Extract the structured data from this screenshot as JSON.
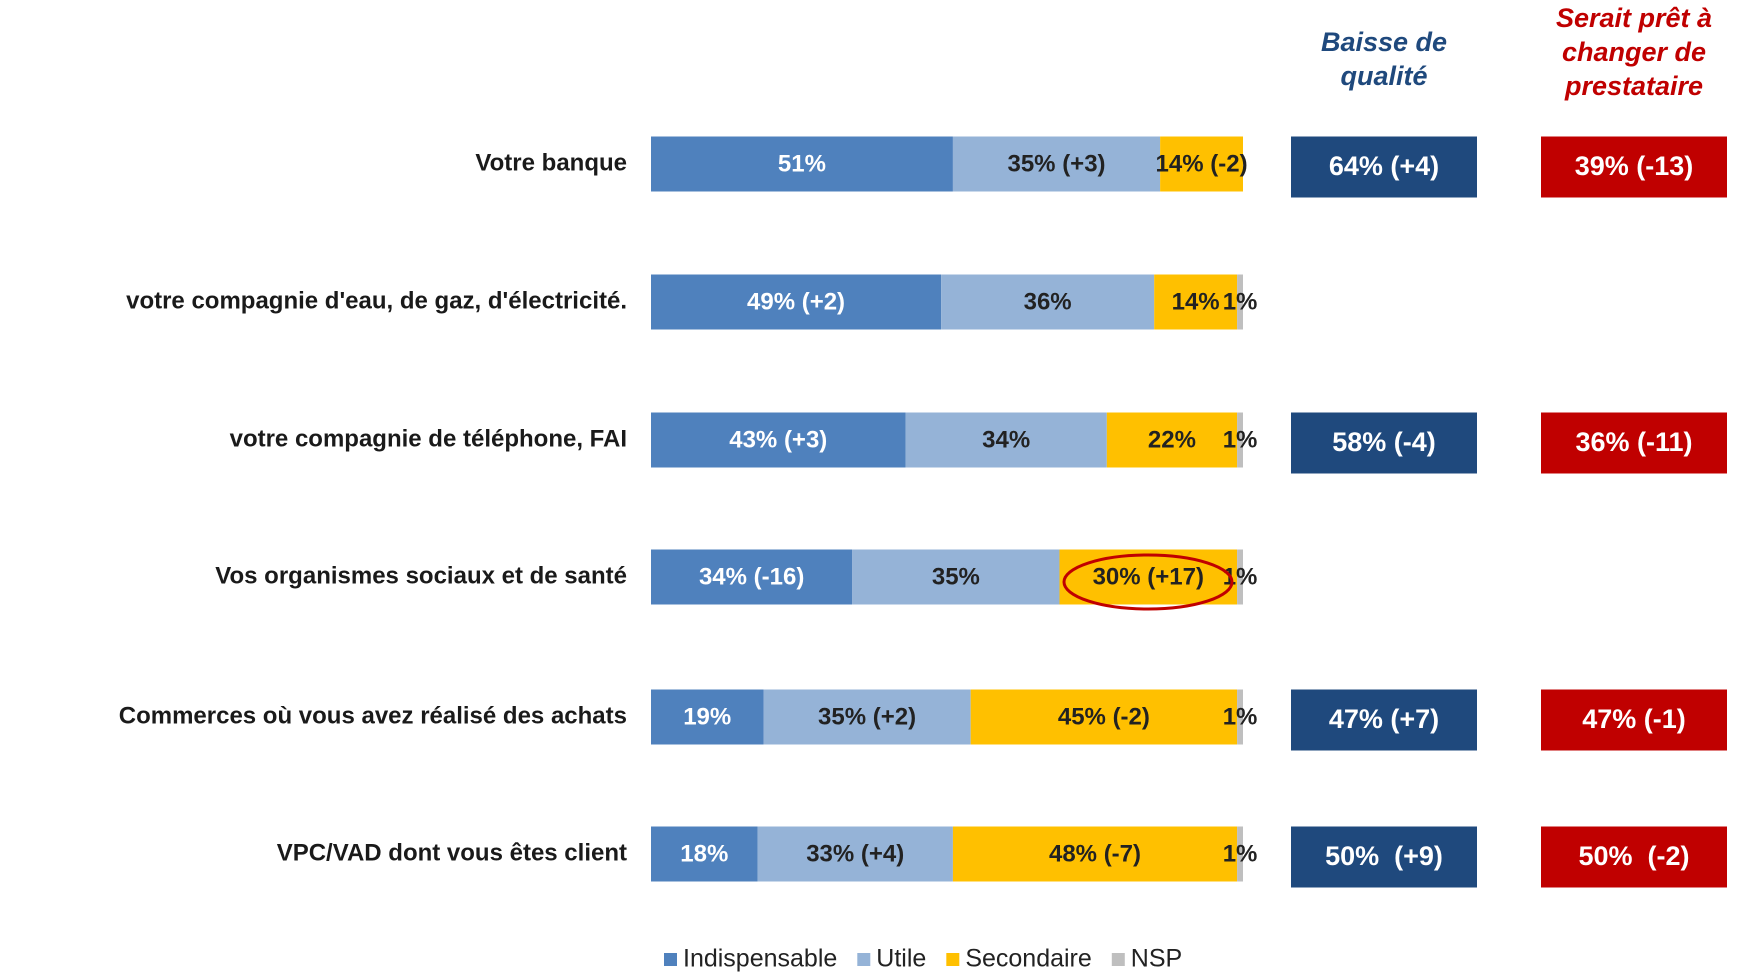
{
  "chart_data": {
    "type": "stacked_bar_horizontal",
    "categories": [
      "Votre banque",
      "votre compagnie d'eau, de gaz, d'électricité.",
      "votre compagnie de téléphone, FAI",
      "Vos organismes sociaux et de santé",
      "Commerces où vous avez réalisé des achats",
      "VPC/VAD dont vous êtes client"
    ],
    "xlim": [
      0,
      100
    ],
    "legend": "bottom",
    "series": [
      {
        "name": "Indispensable",
        "color": "#4f81bd",
        "values": [
          51,
          49,
          43,
          34,
          19,
          18
        ],
        "value_labels": [
          "51%",
          "49% (+2)",
          "43% (+3)",
          "34% (-16)",
          "19%",
          "18%"
        ]
      },
      {
        "name": "Utile",
        "color": "#95b3d7",
        "values": [
          35,
          36,
          34,
          35,
          35,
          33
        ],
        "value_labels": [
          "35% (+3)",
          "36%",
          "34%",
          "35%",
          "35% (+2)",
          "33% (+4)"
        ]
      },
      {
        "name": "Secondaire",
        "color": "#ffc000",
        "values": [
          14,
          14,
          22,
          30,
          45,
          48
        ],
        "value_labels": [
          "14% (-2)",
          "14%",
          "22%",
          "30% (+17)",
          "45% (-2)",
          "48% (-7)"
        ]
      },
      {
        "name": "NSP",
        "color": "#bfbfbf",
        "values": [
          null,
          1,
          1,
          1,
          1,
          1
        ],
        "value_labels": [
          null,
          "1%",
          "1%",
          "1%",
          "1%",
          "1%"
        ]
      }
    ],
    "side_columns": [
      {
        "title_lines": [
          "Baisse de",
          "qualité"
        ],
        "color": "#1f497d",
        "values": [
          64,
          null,
          58,
          null,
          47,
          50
        ],
        "value_labels": [
          "64% (+4)",
          null,
          "58% (-4)",
          null,
          "47% (+7)",
          "50%  (+9)"
        ]
      },
      {
        "title_lines": [
          "Serait prêt à",
          "changer de",
          "prestataire"
        ],
        "color": "#c00000",
        "values": [
          39,
          null,
          36,
          null,
          47,
          50
        ],
        "value_labels": [
          "39% (-13)",
          null,
          "36% (-11)",
          null,
          "47% (-1)",
          "50%  (-2)"
        ]
      }
    ]
  }
}
